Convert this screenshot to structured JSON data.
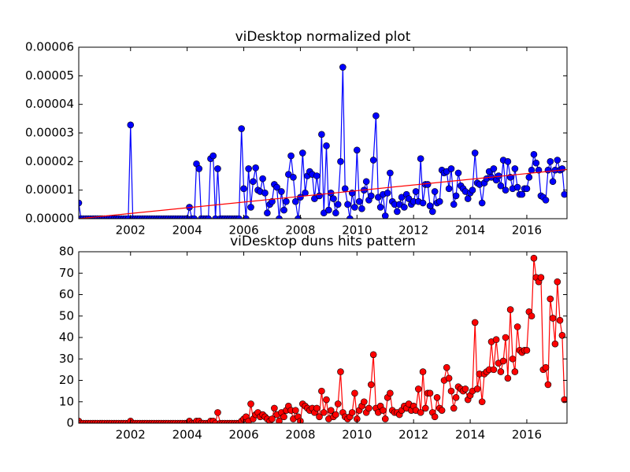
{
  "chart_data": [
    {
      "type": "line",
      "title": "viDesktop normalized plot",
      "x": [
        2000.17,
        2000.25,
        2000.33,
        2000.42,
        2000.5,
        2000.58,
        2000.67,
        2000.75,
        2000.83,
        2000.92,
        2001,
        2001.08,
        2001.17,
        2001.25,
        2001.33,
        2001.42,
        2001.5,
        2001.58,
        2001.67,
        2001.75,
        2001.83,
        2001.92,
        2002,
        2002.08,
        2002.17,
        2002.25,
        2002.33,
        2002.42,
        2002.5,
        2002.58,
        2002.67,
        2002.75,
        2002.83,
        2002.92,
        2003,
        2003.08,
        2003.17,
        2003.25,
        2003.33,
        2003.42,
        2003.5,
        2003.58,
        2003.67,
        2003.75,
        2003.83,
        2003.92,
        2004,
        2004.08,
        2004.17,
        2004.25,
        2004.33,
        2004.42,
        2004.5,
        2004.58,
        2004.67,
        2004.75,
        2004.83,
        2004.92,
        2005,
        2005.08,
        2005.17,
        2005.25,
        2005.33,
        2005.42,
        2005.5,
        2005.58,
        2005.67,
        2005.75,
        2005.83,
        2005.92,
        2006,
        2006.08,
        2006.17,
        2006.25,
        2006.33,
        2006.42,
        2006.5,
        2006.58,
        2006.67,
        2006.75,
        2006.83,
        2006.92,
        2007,
        2007.08,
        2007.17,
        2007.25,
        2007.33,
        2007.42,
        2007.5,
        2007.58,
        2007.67,
        2007.75,
        2007.83,
        2007.92,
        2008,
        2008.08,
        2008.17,
        2008.25,
        2008.33,
        2008.42,
        2008.5,
        2008.58,
        2008.67,
        2008.75,
        2008.83,
        2008.92,
        2009,
        2009.08,
        2009.17,
        2009.25,
        2009.33,
        2009.42,
        2009.5,
        2009.58,
        2009.67,
        2009.75,
        2009.83,
        2009.92,
        2010,
        2010.08,
        2010.17,
        2010.25,
        2010.33,
        2010.42,
        2010.5,
        2010.58,
        2010.67,
        2010.75,
        2010.83,
        2010.92,
        2011,
        2011.08,
        2011.17,
        2011.25,
        2011.33,
        2011.42,
        2011.5,
        2011.58,
        2011.67,
        2011.75,
        2011.83,
        2011.92,
        2012,
        2012.08,
        2012.17,
        2012.25,
        2012.33,
        2012.42,
        2012.5,
        2012.58,
        2012.67,
        2012.75,
        2012.83,
        2012.92,
        2013,
        2013.08,
        2013.17,
        2013.25,
        2013.33,
        2013.42,
        2013.5,
        2013.58,
        2013.67,
        2013.75,
        2013.83,
        2013.92,
        2014,
        2014.08,
        2014.17,
        2014.25,
        2014.33,
        2014.42,
        2014.5,
        2014.58,
        2014.67,
        2014.75,
        2014.83,
        2014.92,
        2015,
        2015.08,
        2015.17,
        2015.25,
        2015.33,
        2015.42,
        2015.5,
        2015.58,
        2015.67,
        2015.75,
        2015.83,
        2015.92,
        2016,
        2016.08,
        2016.17,
        2016.25,
        2016.33,
        2016.42,
        2016.5,
        2016.58,
        2016.67,
        2016.75,
        2016.83,
        2016.92,
        2017,
        2017.08,
        2017.17,
        2017.25,
        2017.33
      ],
      "series": [
        {
          "color": "#0000ff",
          "values": [
            5.5e-06,
            0,
            0,
            0,
            0,
            0,
            0,
            0,
            0,
            0,
            0,
            0,
            0,
            0,
            0,
            0,
            0,
            0,
            0,
            0,
            0,
            0,
            3.28e-05,
            0,
            0,
            0,
            0,
            0,
            0,
            0,
            0,
            0,
            0,
            0,
            0,
            0,
            0,
            0,
            0,
            0,
            0,
            0,
            0,
            0,
            0,
            0,
            0,
            4e-06,
            0,
            0,
            1.92e-05,
            1.75e-05,
            0,
            0,
            0,
            0,
            2.1e-05,
            2.2e-05,
            0,
            1.75e-05,
            0,
            0,
            0,
            0,
            0,
            0,
            0,
            0,
            0,
            3.15e-05,
            1.05e-05,
            0,
            1.75e-05,
            4e-06,
            1.3e-05,
            1.78e-05,
            1e-05,
            9.5e-06,
            1.4e-05,
            9e-06,
            2e-06,
            5e-06,
            6e-06,
            1.2e-05,
            1.1e-05,
            0,
            9.5e-06,
            3e-06,
            6e-06,
            1.55e-05,
            2.2e-05,
            1.45e-05,
            6e-06,
            0,
            7.5e-06,
            2.3e-05,
            9e-06,
            1.5e-05,
            1.65e-05,
            1.55e-05,
            7e-06,
            1.5e-05,
            8e-06,
            2.95e-05,
            2e-06,
            2.55e-05,
            3e-06,
            9e-06,
            7e-06,
            2e-06,
            5e-06,
            2e-05,
            5.3e-05,
            1.05e-05,
            5e-06,
            0,
            9e-06,
            4e-06,
            2.4e-05,
            6e-06,
            3.5e-06,
            1e-05,
            1.3e-05,
            6.5e-06,
            8e-06,
            2.05e-05,
            3.6e-05,
            7.5e-06,
            4e-06,
            8.5e-06,
            1e-06,
            9e-06,
            1.6e-05,
            6e-06,
            5e-06,
            2.5e-06,
            5e-06,
            7.5e-06,
            4e-06,
            8.5e-06,
            7e-06,
            5e-06,
            6e-06,
            9.5e-06,
            6e-06,
            2.1e-05,
            5.5e-06,
            1.2e-05,
            1.2e-05,
            4.5e-06,
            2.5e-06,
            9.5e-06,
            5.5e-06,
            6e-06,
            1.7e-05,
            1.6e-05,
            1.65e-05,
            1.05e-05,
            1.75e-05,
            5e-06,
            8e-06,
            1.6e-05,
            1.15e-05,
            1.05e-05,
            9.5e-06,
            7e-06,
            9e-06,
            1e-05,
            2.3e-05,
            1.25e-05,
            1.2e-05,
            5.5e-06,
            1.25e-05,
            1.4e-05,
            1.65e-05,
            1.45e-05,
            1.75e-05,
            1.35e-05,
            1.5e-05,
            1.15e-05,
            2.05e-05,
            1e-05,
            2e-05,
            1.45e-05,
            1.05e-05,
            1.75e-05,
            1.1e-05,
            8.5e-06,
            8.5e-06,
            1.05e-05,
            1.05e-05,
            1.45e-05,
            1.7e-05,
            2.25e-05,
            1.95e-05,
            1.7e-05,
            8e-06,
            7.5e-06,
            6.5e-06,
            1.7e-05,
            2e-05,
            1.3e-05,
            1.7e-05,
            2.05e-05,
            1.7e-05,
            1.75e-05,
            8.5e-06
          ]
        }
      ],
      "trend": {
        "color": "#ff0000",
        "x": [
          2000.17,
          2017.42
        ],
        "values": [
          0,
          1.72e-05
        ]
      },
      "xlim": [
        2000.17,
        2017.42
      ],
      "xticks": [
        2002,
        2004,
        2006,
        2008,
        2010,
        2012,
        2014,
        2016
      ],
      "ylim": [
        0,
        6e-05
      ],
      "yticks": [
        {
          "value": 0,
          "label": "0.00000"
        },
        {
          "value": 1e-05,
          "label": "0.00001"
        },
        {
          "value": 2e-05,
          "label": "0.00002"
        },
        {
          "value": 3e-05,
          "label": "0.00003"
        },
        {
          "value": 4e-05,
          "label": "0.00004"
        },
        {
          "value": 5e-05,
          "label": "0.00005"
        },
        {
          "value": 6e-05,
          "label": "0.00006"
        }
      ]
    },
    {
      "type": "line",
      "title": "viDesktop duns hits pattern",
      "x": [
        2000.17,
        2000.25,
        2000.33,
        2000.42,
        2000.5,
        2000.58,
        2000.67,
        2000.75,
        2000.83,
        2000.92,
        2001,
        2001.08,
        2001.17,
        2001.25,
        2001.33,
        2001.42,
        2001.5,
        2001.58,
        2001.67,
        2001.75,
        2001.83,
        2001.92,
        2002,
        2002.08,
        2002.17,
        2002.25,
        2002.33,
        2002.42,
        2002.5,
        2002.58,
        2002.67,
        2002.75,
        2002.83,
        2002.92,
        2003,
        2003.08,
        2003.17,
        2003.25,
        2003.33,
        2003.42,
        2003.5,
        2003.58,
        2003.67,
        2003.75,
        2003.83,
        2003.92,
        2004,
        2004.08,
        2004.17,
        2004.25,
        2004.33,
        2004.42,
        2004.5,
        2004.58,
        2004.67,
        2004.75,
        2004.83,
        2004.92,
        2005,
        2005.08,
        2005.17,
        2005.25,
        2005.33,
        2005.42,
        2005.5,
        2005.58,
        2005.67,
        2005.75,
        2005.83,
        2005.92,
        2006,
        2006.08,
        2006.17,
        2006.25,
        2006.33,
        2006.42,
        2006.5,
        2006.58,
        2006.67,
        2006.75,
        2006.83,
        2006.92,
        2007,
        2007.08,
        2007.17,
        2007.25,
        2007.33,
        2007.42,
        2007.5,
        2007.58,
        2007.67,
        2007.75,
        2007.83,
        2007.92,
        2008,
        2008.08,
        2008.17,
        2008.25,
        2008.33,
        2008.42,
        2008.5,
        2008.58,
        2008.67,
        2008.75,
        2008.83,
        2008.92,
        2009,
        2009.08,
        2009.17,
        2009.25,
        2009.33,
        2009.42,
        2009.5,
        2009.58,
        2009.67,
        2009.75,
        2009.83,
        2009.92,
        2010,
        2010.08,
        2010.17,
        2010.25,
        2010.33,
        2010.42,
        2010.5,
        2010.58,
        2010.67,
        2010.75,
        2010.83,
        2010.92,
        2011,
        2011.08,
        2011.17,
        2011.25,
        2011.33,
        2011.42,
        2011.5,
        2011.58,
        2011.67,
        2011.75,
        2011.83,
        2011.92,
        2012,
        2012.08,
        2012.17,
        2012.25,
        2012.33,
        2012.42,
        2012.5,
        2012.58,
        2012.67,
        2012.75,
        2012.83,
        2012.92,
        2013,
        2013.08,
        2013.17,
        2013.25,
        2013.33,
        2013.42,
        2013.5,
        2013.58,
        2013.67,
        2013.75,
        2013.83,
        2013.92,
        2014,
        2014.08,
        2014.17,
        2014.25,
        2014.33,
        2014.42,
        2014.5,
        2014.58,
        2014.67,
        2014.75,
        2014.83,
        2014.92,
        2015,
        2015.08,
        2015.17,
        2015.25,
        2015.33,
        2015.42,
        2015.5,
        2015.58,
        2015.67,
        2015.75,
        2015.83,
        2015.92,
        2016,
        2016.08,
        2016.17,
        2016.25,
        2016.33,
        2016.42,
        2016.5,
        2016.58,
        2016.67,
        2016.75,
        2016.83,
        2016.92,
        2017,
        2017.08,
        2017.17,
        2017.25,
        2017.33
      ],
      "series": [
        {
          "color": "#ff0000",
          "values": [
            1,
            0,
            0,
            0,
            0,
            0,
            0,
            0,
            0,
            0,
            0,
            0,
            0,
            0,
            0,
            0,
            0,
            0,
            0,
            0,
            0,
            0,
            1,
            0,
            0,
            0,
            0,
            0,
            0,
            0,
            0,
            0,
            0,
            0,
            0,
            0,
            0,
            0,
            0,
            0,
            0,
            0,
            0,
            0,
            0,
            0,
            0,
            1,
            0,
            0,
            1,
            1,
            0,
            0,
            0,
            0,
            1,
            1,
            0,
            5,
            0,
            0,
            0,
            0,
            0,
            0,
            0,
            0,
            0,
            1,
            2,
            3,
            1,
            9,
            2,
            4,
            5,
            3,
            4,
            3,
            2,
            1,
            2,
            7,
            4,
            1,
            5,
            3,
            6,
            8,
            6,
            2,
            6,
            3,
            1,
            9,
            8,
            7,
            6,
            7,
            5,
            7,
            3,
            15,
            5,
            11,
            2,
            6,
            3,
            4,
            9,
            24,
            5,
            3,
            2,
            3,
            5,
            14,
            2,
            6,
            8,
            10,
            5,
            7,
            18,
            32,
            7,
            5,
            8,
            6,
            2,
            12,
            14,
            6,
            5,
            5,
            4,
            6,
            8,
            7,
            9,
            6,
            8,
            6,
            16,
            5,
            24,
            7,
            14,
            14,
            5,
            3,
            12,
            7,
            6,
            20,
            26,
            21,
            15,
            7,
            12,
            17,
            16,
            15,
            16,
            11,
            13,
            15,
            47,
            16,
            23,
            10,
            23,
            24,
            25,
            38,
            25,
            39,
            28,
            24,
            29,
            40,
            21,
            53,
            30,
            24,
            45,
            34,
            33,
            34,
            34,
            52,
            50,
            77,
            68,
            66,
            68,
            25,
            26,
            18,
            58,
            49,
            37,
            66,
            48,
            41,
            11
          ]
        }
      ],
      "xlim": [
        2000.17,
        2017.42
      ],
      "xticks": [
        2002,
        2004,
        2006,
        2008,
        2010,
        2012,
        2014,
        2016
      ],
      "ylim": [
        0,
        80
      ],
      "yticks": [
        0,
        10,
        20,
        30,
        40,
        50,
        60,
        70,
        80
      ]
    }
  ]
}
